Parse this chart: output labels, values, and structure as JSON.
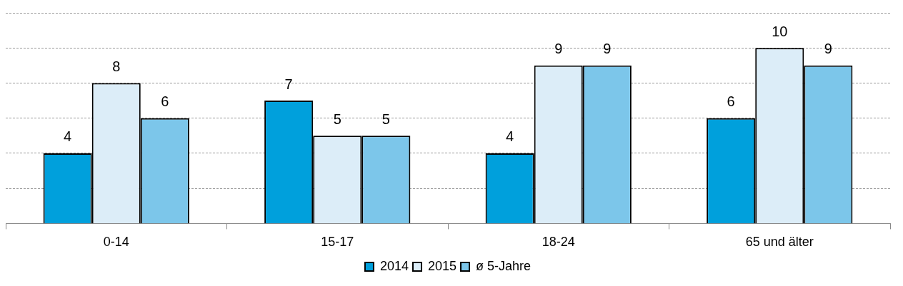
{
  "chart_data": {
    "type": "bar",
    "categories": [
      "0-14",
      "15-17",
      "18-24",
      "65 und älter"
    ],
    "series": [
      {
        "name": "2014",
        "color": "#00a0dc",
        "values": [
          4,
          7,
          4,
          6
        ]
      },
      {
        "name": "2015",
        "color": "#dcedf8",
        "values": [
          8,
          5,
          9,
          10
        ]
      },
      {
        "name": "ø 5-Jahre",
        "color": "#7cc6ea",
        "values": [
          6,
          5,
          9,
          9
        ]
      }
    ],
    "tick_labels": "x",
    "grid": "y",
    "legend": "bottom",
    "data_labels": true
  }
}
